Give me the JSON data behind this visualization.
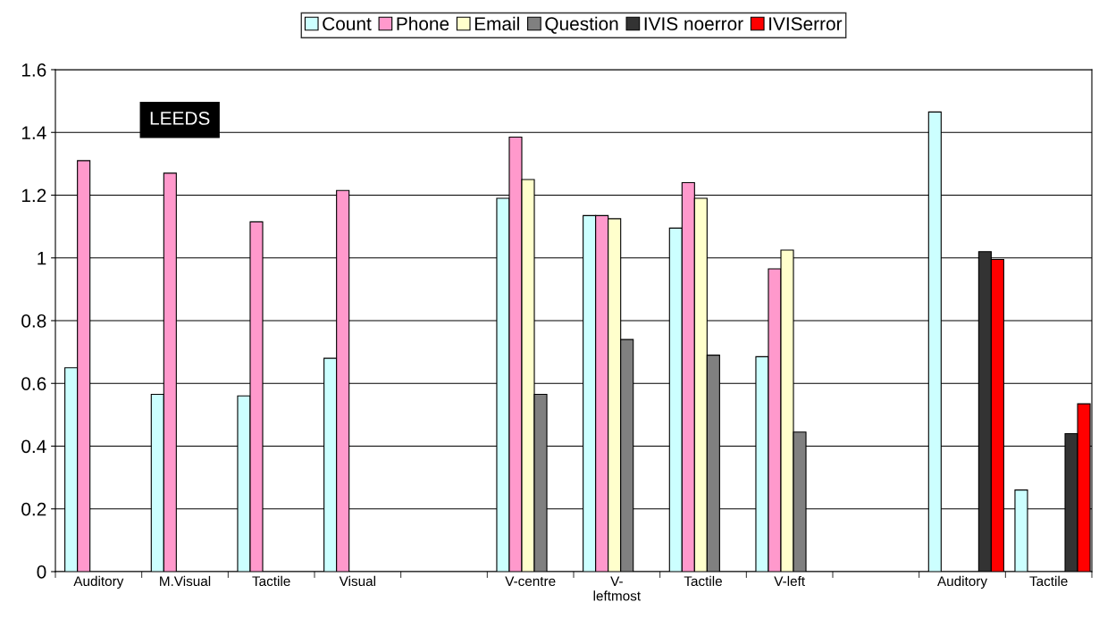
{
  "chart_data": {
    "type": "bar",
    "categories": [
      "Auditory",
      "M.Visual",
      "Tactile",
      "Visual",
      null,
      "V-centre",
      "V-\nleftmost",
      "Tactile",
      "V-left",
      null,
      "Auditory",
      "Tactile"
    ],
    "series": [
      {
        "name": "Count",
        "color": "#ccffff",
        "values": [
          0.65,
          0.565,
          0.56,
          0.68,
          null,
          1.19,
          1.135,
          1.095,
          0.685,
          null,
          1.465,
          0.26
        ]
      },
      {
        "name": "Phone",
        "color": "#ff99cc",
        "values": [
          1.31,
          1.27,
          1.115,
          1.215,
          null,
          1.385,
          1.135,
          1.24,
          0.965,
          null,
          null,
          null
        ]
      },
      {
        "name": "Email",
        "color": "#ffffcc",
        "values": [
          null,
          null,
          null,
          null,
          null,
          1.25,
          1.125,
          1.19,
          1.025,
          null,
          null,
          null
        ]
      },
      {
        "name": "Question",
        "color": "#808080",
        "values": [
          null,
          null,
          null,
          null,
          null,
          0.565,
          0.74,
          0.69,
          0.445,
          null,
          null,
          null
        ]
      },
      {
        "name": "IVIS noerror",
        "color": "#333333",
        "values": [
          null,
          null,
          null,
          null,
          null,
          null,
          null,
          null,
          null,
          null,
          1.02,
          0.44
        ]
      },
      {
        "name": "IVISerror",
        "color": "#ff0000",
        "values": [
          null,
          null,
          null,
          null,
          null,
          null,
          null,
          null,
          null,
          null,
          0.995,
          0.535
        ]
      }
    ],
    "ylim": [
      0,
      1.6
    ],
    "yticks": [
      0,
      0.2,
      0.4,
      0.6,
      0.8,
      1,
      1.2,
      1.4,
      1.6
    ],
    "grid": "y",
    "legend": "top",
    "annotations": [
      "LEEDS"
    ]
  }
}
